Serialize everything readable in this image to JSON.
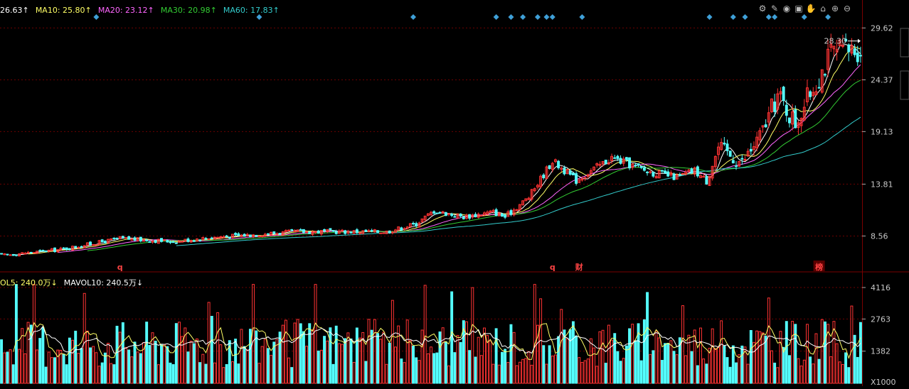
{
  "legend_top": [
    {
      "text": "26.63↑",
      "color": "#ffffff"
    },
    {
      "text": "MA10: 25.80↑",
      "color": "#ffff66"
    },
    {
      "text": "MA20: 23.12↑",
      "color": "#ff66ff"
    },
    {
      "text": "MA30: 20.98↑",
      "color": "#33cc33"
    },
    {
      "text": "MA60: 17.83↑",
      "color": "#33cccc"
    }
  ],
  "legend_vol": [
    {
      "text": "OL5: 240.0万↓",
      "color": "#ffff66"
    },
    {
      "text": "MAVOL10: 240.5万↓",
      "color": "#ffffff"
    }
  ],
  "toolbar_icons": [
    "settings-icon",
    "pen-icon",
    "eye-icon",
    "box-icon",
    "hand-icon",
    "lock-icon",
    "zoom-in-icon",
    "zoom-out-icon"
  ],
  "toolbar_glyphs": [
    "⚙",
    "✎",
    "◉",
    "▣",
    "✋",
    "⌂",
    "⊕",
    "⊖"
  ],
  "price_last_label": "28.30",
  "volume_unit_label": "X1000",
  "event_markers": [
    {
      "text": "q",
      "x_index": 40,
      "color": "#ff4444"
    },
    {
      "text": "q",
      "x_index": 186,
      "color": "#ff4444"
    },
    {
      "text": "财",
      "x_index": 195,
      "color": "#ff4444"
    },
    {
      "text": "榜",
      "x_index": 276,
      "color": "#ff4444",
      "boxed": true
    }
  ],
  "diamond_indices": [
    32,
    87,
    139,
    167,
    172,
    176,
    181,
    184,
    186,
    196,
    239,
    247,
    251,
    259,
    261,
    271,
    279
  ],
  "colors": {
    "up": "#ff3333",
    "down": "#54ffff",
    "grid": "#6b0000",
    "separator": "#7a0000",
    "ma5": "#ffffff",
    "ma10": "#ffff66",
    "ma20": "#ff66ff",
    "ma30": "#33cc33",
    "ma60": "#33cccc",
    "diamond": "#3fa0d8"
  },
  "chart_data": {
    "type": "candlestick",
    "price_axis_ticks": [
      29.62,
      24.37,
      19.13,
      13.81,
      8.56
    ],
    "price_range": [
      5.0,
      31.3
    ],
    "volume_axis_ticks": [
      4116,
      2763,
      1382
    ],
    "volume_range": [
      0,
      4300
    ],
    "ma_settings": [
      5,
      10,
      20,
      30,
      60
    ],
    "anchors": [
      [
        0,
        6.6
      ],
      [
        20,
        7.2
      ],
      [
        40,
        8.3
      ],
      [
        58,
        8.0
      ],
      [
        70,
        8.4
      ],
      [
        100,
        9.0
      ],
      [
        130,
        9.0
      ],
      [
        140,
        9.8
      ],
      [
        146,
        11.1
      ],
      [
        156,
        10.5
      ],
      [
        166,
        11.0
      ],
      [
        170,
        10.5
      ],
      [
        178,
        12.5
      ],
      [
        186,
        16.2
      ],
      [
        194,
        14.2
      ],
      [
        206,
        16.5
      ],
      [
        218,
        15.1
      ],
      [
        228,
        14.5
      ],
      [
        234,
        15.2
      ],
      [
        238,
        14.1
      ],
      [
        242,
        17.5
      ],
      [
        250,
        16.0
      ],
      [
        256,
        18.6
      ],
      [
        262,
        22.8
      ],
      [
        268,
        20.0
      ],
      [
        274,
        23.7
      ],
      [
        280,
        27.0
      ],
      [
        290,
        27.6
      ]
    ],
    "n_candles": 291,
    "volume_base": 1900,
    "volume_seed": 17
  }
}
